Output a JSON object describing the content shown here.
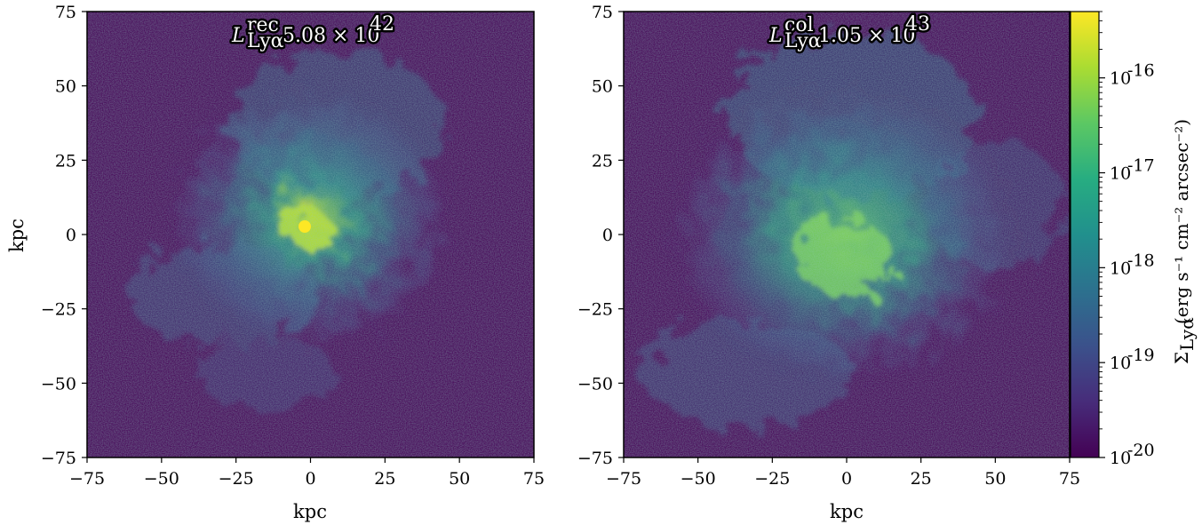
{
  "chart_data": [
    {
      "type": "heatmap",
      "panel": "left",
      "annotation": {
        "symbol": "L",
        "superscript": "rec",
        "subscript": "Lyα",
        "value_mantissa": "5.08 × 10",
        "value_exponent": "42"
      },
      "xlabel": "kpc",
      "ylabel": "kpc",
      "xlim": [
        -75,
        75
      ],
      "ylim": [
        -75,
        75
      ],
      "xticks": [
        -75,
        -50,
        -25,
        0,
        25,
        50,
        75
      ],
      "yticks": [
        -75,
        -50,
        -25,
        0,
        25,
        50,
        75
      ],
      "xtick_labels": [
        "−75",
        "−50",
        "−25",
        "0",
        "25",
        "50",
        "75"
      ],
      "ytick_labels": [
        "−75",
        "−50",
        "−25",
        "0",
        "25",
        "50",
        "75"
      ],
      "colormap": "viridis",
      "scale": "log"
    },
    {
      "type": "heatmap",
      "panel": "right",
      "annotation": {
        "symbol": "L",
        "superscript": "col",
        "subscript": "Lyα",
        "value_mantissa": "1.05 × 10",
        "value_exponent": "43"
      },
      "xlabel": "kpc",
      "ylabel": "",
      "xlim": [
        -75,
        75
      ],
      "ylim": [
        -75,
        75
      ],
      "xticks": [
        -75,
        -50,
        -25,
        0,
        25,
        50,
        75
      ],
      "yticks": [
        -75,
        -50,
        -25,
        0,
        25,
        50,
        75
      ],
      "xtick_labels": [
        "−75",
        "−50",
        "−25",
        "0",
        "25",
        "50",
        "75"
      ],
      "ytick_labels": [
        "−75",
        "−50",
        "−25",
        "0",
        "25",
        "50",
        "75"
      ],
      "colormap": "viridis",
      "scale": "log"
    }
  ],
  "colorbar": {
    "scale": "log",
    "range": [
      1e-20,
      5e-16
    ],
    "ticks": [
      {
        "value": 1e-20,
        "base": "10",
        "exp": "-20"
      },
      {
        "value": 1e-19,
        "base": "10",
        "exp": "-19"
      },
      {
        "value": 1e-18,
        "base": "10",
        "exp": "-18"
      },
      {
        "value": 1e-17,
        "base": "10",
        "exp": "-17"
      },
      {
        "value": 1e-16,
        "base": "10",
        "exp": "-16"
      }
    ],
    "label": {
      "symbol": "Σ",
      "subscript": "Lyα",
      "units": "(erg s⁻¹ cm⁻² arcsec⁻²)"
    },
    "colors": [
      "#440154",
      "#472c7a",
      "#3b518b",
      "#2c718e",
      "#21908d",
      "#27ad81",
      "#5cc863",
      "#aadc32",
      "#fde725"
    ]
  },
  "colors": {
    "background": "#440154",
    "frame": "#000000"
  }
}
